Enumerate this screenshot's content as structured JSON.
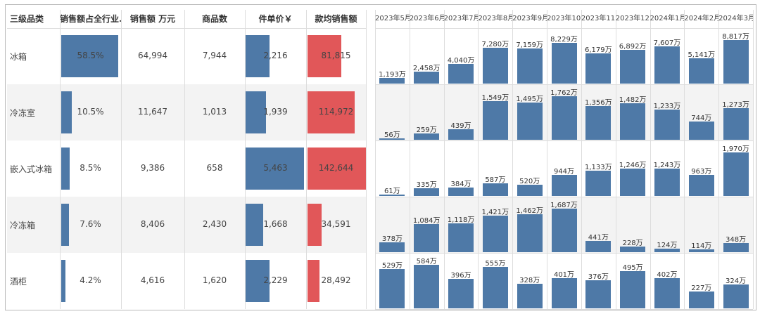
{
  "colors": {
    "blue": "#4e79a7",
    "red": "#e15759",
    "alt_row": "#f3f3f3"
  },
  "headers": [
    "三级品类",
    "销售额占全行业..",
    "销售额 万元",
    "商品数",
    "件单价￥",
    "款均销售额"
  ],
  "rows": [
    {
      "category": "冰箱",
      "share": "58.5%",
      "share_value": 58.5,
      "sales": "64,994",
      "items": "7,944",
      "unit_price": "2,216",
      "unit_price_value": 2216,
      "avg_sales": "81,815",
      "avg_sales_value": 81815
    },
    {
      "category": "冷冻室",
      "share": "10.5%",
      "share_value": 10.5,
      "sales": "11,647",
      "items": "1,013",
      "unit_price": "1,939",
      "unit_price_value": 1939,
      "avg_sales": "114,972",
      "avg_sales_value": 114972
    },
    {
      "category": "嵌入式冰箱",
      "share": "8.5%",
      "share_value": 8.5,
      "sales": "9,386",
      "items": "658",
      "unit_price": "5,463",
      "unit_price_value": 5463,
      "avg_sales": "142,644",
      "avg_sales_value": 142644
    },
    {
      "category": "冷冻箱",
      "share": "7.6%",
      "share_value": 7.6,
      "sales": "8,406",
      "items": "2,430",
      "unit_price": "1,668",
      "unit_price_value": 1668,
      "avg_sales": "34,591",
      "avg_sales_value": 34591
    },
    {
      "category": "酒柜",
      "share": "4.2%",
      "share_value": 4.2,
      "sales": "4,616",
      "items": "1,620",
      "unit_price": "2,229",
      "unit_price_value": 2229,
      "avg_sales": "28,492",
      "avg_sales_value": 28492
    }
  ],
  "chart_data": {
    "type": "bar",
    "title": "",
    "unit": "万",
    "categories": [
      "2023年5月",
      "2023年6月",
      "2023年7月",
      "2023年8月",
      "2023年9月",
      "2023年10..",
      "2023年11..",
      "2023年12..",
      "2024年1月",
      "2024年2月",
      "2024年3月"
    ],
    "series": [
      {
        "name": "冰箱",
        "values": [
          1193,
          2458,
          4040,
          7280,
          7159,
          8229,
          6179,
          6892,
          7607,
          5141,
          8817
        ]
      },
      {
        "name": "冷冻室",
        "values": [
          56,
          259,
          439,
          1549,
          1495,
          1762,
          1356,
          1482,
          1233,
          744,
          1273
        ]
      },
      {
        "name": "嵌入式冰箱",
        "values": [
          61,
          335,
          384,
          587,
          520,
          944,
          1133,
          1246,
          1243,
          963,
          1970
        ]
      },
      {
        "name": "冷冻箱",
        "values": [
          378,
          1084,
          1118,
          1421,
          1462,
          1687,
          441,
          228,
          124,
          114,
          348
        ]
      },
      {
        "name": "酒柜",
        "values": [
          529,
          584,
          396,
          555,
          328,
          401,
          376,
          495,
          402,
          227,
          324
        ]
      }
    ]
  }
}
